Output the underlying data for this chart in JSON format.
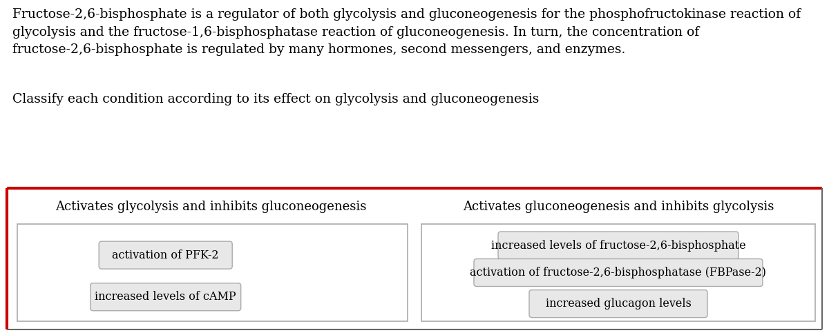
{
  "background_color": "#ffffff",
  "paragraph_text": "Fructose-2,6-bisphosphate is a regulator of both glycolysis and gluconeogenesis for the phosphofructokinase reaction of\nglycolysis and the fructose-1,6-bisphosphatase reaction of gluconeogenesis. In turn, the concentration of\nfructose-2,6-bisphosphate is regulated by many hormones, second messengers, and enzymes.",
  "classify_text": "Classify each condition according to its effect on glycolysis and gluconeogenesis",
  "text_color": "#000000",
  "red_color": "#cc0000",
  "box_bg_light": "#e8e8e8",
  "box_border_color": "#aaaaaa",
  "outer_border_color": "#666666",
  "left_header": "Activates glycolysis and inhibits gluconeogenesis",
  "right_header": "Activates gluconeogenesis and inhibits glycolysis",
  "left_items": [
    "activation of PFK-2",
    "increased levels of cAMP"
  ],
  "right_items": [
    "increased levels of fructose-2,6-bisphosphate",
    "activation of fructose-2,6-bisphosphatase (FBPase-2)",
    "increased glucagon levels"
  ],
  "font_size_paragraph": 13.5,
  "font_size_classify": 13.5,
  "font_size_header": 13.0,
  "font_size_item": 11.5,
  "fig_width": 12.0,
  "fig_height": 4.86,
  "dpi": 100
}
